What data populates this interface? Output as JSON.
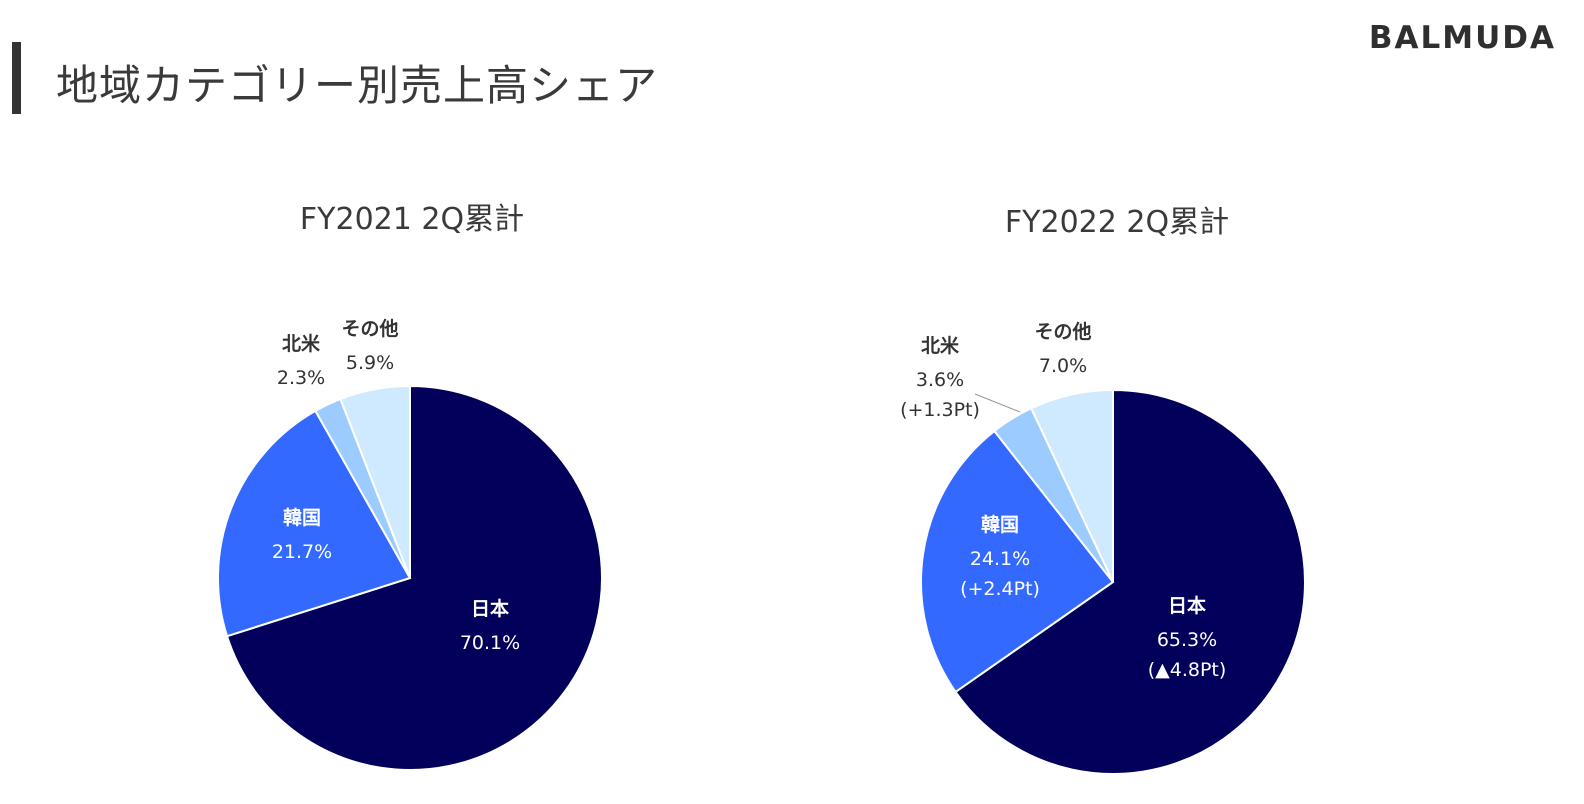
{
  "header": {
    "title": "地域カテゴリー別売上高シェア",
    "brand": "BALMUDA"
  },
  "colors": {
    "japan": "#02005B",
    "korea": "#3469FF",
    "north_america": "#9CCBFF",
    "other": "#CFEAFE"
  },
  "chart_data": [
    {
      "type": "pie",
      "title": "FY2021 2Q累計",
      "unit": "%",
      "slices": [
        {
          "key": "japan",
          "label": "日本",
          "value": 70.1,
          "value_text": "70.1%",
          "change": ""
        },
        {
          "key": "korea",
          "label": "韓国",
          "value": 21.7,
          "value_text": "21.7%",
          "change": ""
        },
        {
          "key": "north_america",
          "label": "北米",
          "value": 2.3,
          "value_text": "2.3%",
          "change": ""
        },
        {
          "key": "other",
          "label": "その他",
          "value": 5.9,
          "value_text": "5.9%",
          "change": ""
        }
      ]
    },
    {
      "type": "pie",
      "title": "FY2022 2Q累計",
      "unit": "%",
      "slices": [
        {
          "key": "japan",
          "label": "日本",
          "value": 65.3,
          "value_text": "65.3%",
          "change": "(▲4.8Pt)"
        },
        {
          "key": "korea",
          "label": "韓国",
          "value": 24.1,
          "value_text": "24.1%",
          "change": "(+2.4Pt)"
        },
        {
          "key": "north_america",
          "label": "北米",
          "value": 3.6,
          "value_text": "3.6%",
          "change": "(+1.3Pt)"
        },
        {
          "key": "other",
          "label": "その他",
          "value": 7.0,
          "value_text": "7.0%",
          "change": ""
        }
      ]
    }
  ]
}
